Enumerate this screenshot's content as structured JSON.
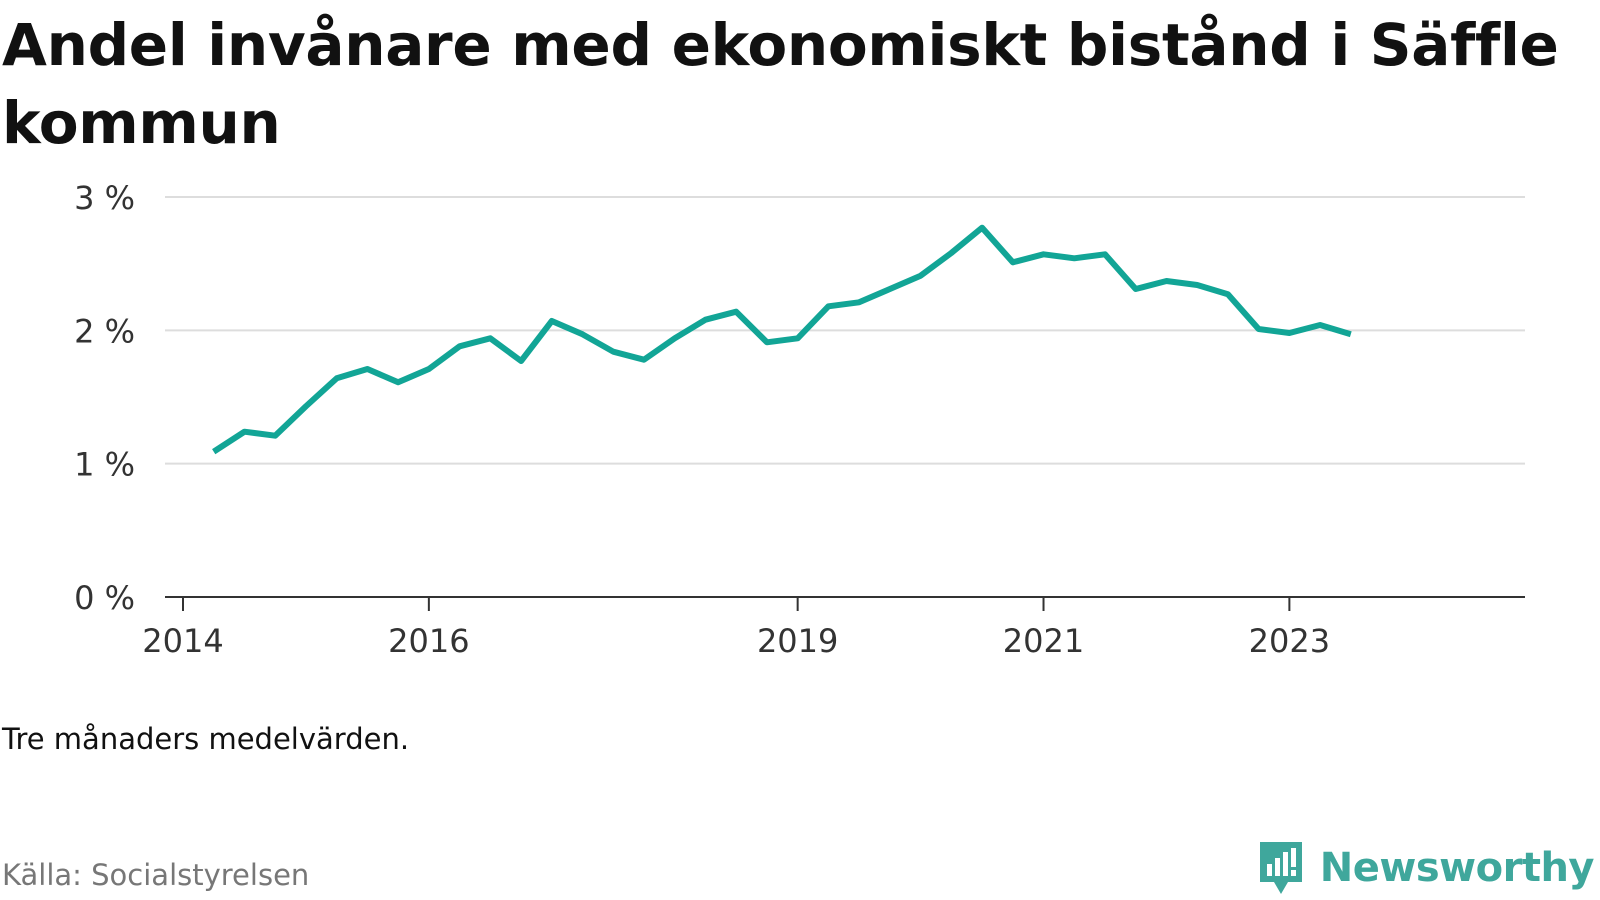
{
  "title": "Andel invånare med ekonomiskt bistånd i Säffle kommun",
  "note": "Tre månaders medelvärden.",
  "source": "Källa: Socialstyrelsen",
  "brand": {
    "name": "Newsworthy",
    "icon": "newsworthy-logo-icon",
    "color": "#3fa79c"
  },
  "chart_data": {
    "type": "line",
    "title": "Andel invånare med ekonomiskt bistånd i Säffle kommun",
    "xlabel": "",
    "ylabel": "",
    "ylim": [
      0,
      3
    ],
    "xlim": [
      "2014-01",
      "2024-12"
    ],
    "y_ticks": [
      {
        "value": 0,
        "label": "0 %"
      },
      {
        "value": 1,
        "label": "1 %"
      },
      {
        "value": 2,
        "label": "2 %"
      },
      {
        "value": 3,
        "label": "3 %"
      }
    ],
    "x_ticks": [
      {
        "value": "2014-01",
        "label": "2014"
      },
      {
        "value": "2016-01",
        "label": "2016"
      },
      {
        "value": "2019-01",
        "label": "2019"
      },
      {
        "value": "2021-01",
        "label": "2021"
      },
      {
        "value": "2023-01",
        "label": "2023"
      }
    ],
    "grid": true,
    "line_color": "#12a596",
    "series": [
      {
        "x": [
          "2014-04",
          "2014-07",
          "2014-10",
          "2015-01",
          "2015-04",
          "2015-07",
          "2015-10",
          "2016-01",
          "2016-04",
          "2016-07",
          "2016-10",
          "2017-01",
          "2017-04",
          "2017-07",
          "2017-10",
          "2018-01",
          "2018-04",
          "2018-07",
          "2018-10",
          "2019-01",
          "2019-04",
          "2019-07",
          "2019-10",
          "2020-01",
          "2020-04",
          "2020-07",
          "2020-10",
          "2021-01",
          "2021-04",
          "2021-07",
          "2021-10",
          "2022-01",
          "2022-04",
          "2022-07",
          "2022-10",
          "2023-01",
          "2023-04",
          "2023-07"
        ],
        "values": [
          1.09,
          1.24,
          1.21,
          1.43,
          1.64,
          1.71,
          1.61,
          1.71,
          1.88,
          1.94,
          1.77,
          2.07,
          1.97,
          1.84,
          1.78,
          1.94,
          2.08,
          2.14,
          1.91,
          1.94,
          2.18,
          2.21,
          2.31,
          2.41,
          2.58,
          2.77,
          2.51,
          2.57,
          2.54,
          2.57,
          2.31,
          2.37,
          2.34,
          2.27,
          2.01,
          1.98,
          2.04,
          1.97
        ]
      }
    ]
  }
}
